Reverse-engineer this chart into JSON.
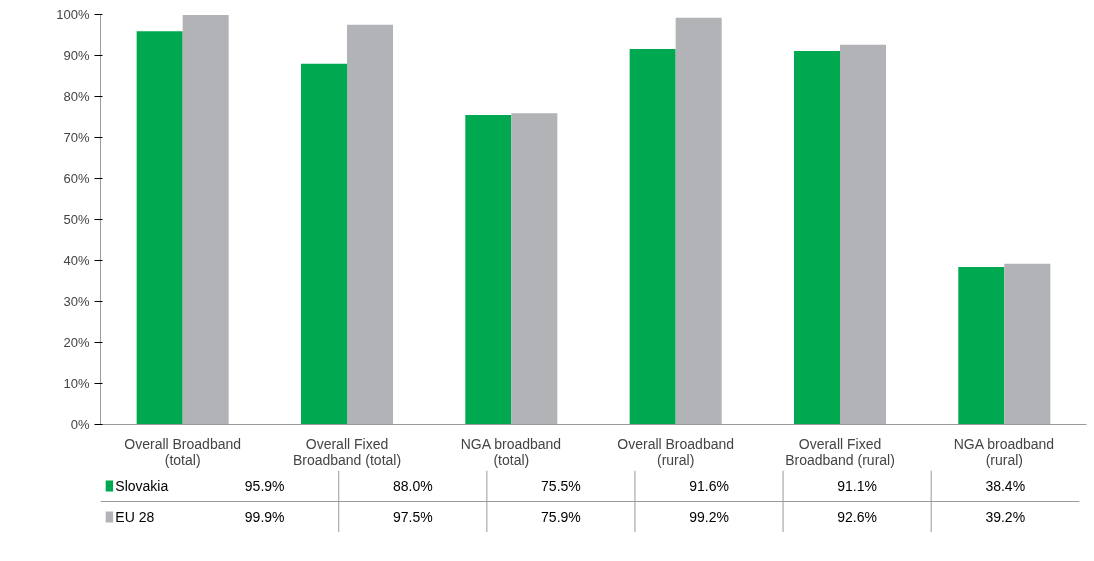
{
  "chart_data": {
    "type": "bar",
    "categories": [
      "Overall Broadband (total)",
      "Overall Fixed Broadband (total)",
      "NGA broadband (total)",
      "Overall Broadband (rural)",
      "Overall Fixed Broadband (rural)",
      "NGA broadband (rural)"
    ],
    "series": [
      {
        "name": "Slovakia",
        "color": "#00a84f",
        "values": [
          95.9,
          88.0,
          75.5,
          91.6,
          91.1,
          38.4
        ],
        "value_labels": [
          "95.9%",
          "88.0%",
          "75.5%",
          "91.6%",
          "91.1%",
          "38.4%"
        ]
      },
      {
        "name": "EU 28",
        "color": "#b1b3b6",
        "values": [
          99.9,
          97.5,
          75.9,
          99.2,
          92.6,
          39.2
        ],
        "value_labels": [
          "99.9%",
          "97.5%",
          "75.9%",
          "99.2%",
          "92.6%",
          "39.2%"
        ]
      }
    ],
    "ylim": [
      0,
      100
    ],
    "yticks": [
      {
        "value": 0,
        "label": "0%"
      },
      {
        "value": 10,
        "label": "10%"
      },
      {
        "value": 20,
        "label": "20%"
      },
      {
        "value": 30,
        "label": "30%"
      },
      {
        "value": 40,
        "label": "40%"
      },
      {
        "value": 50,
        "label": "50%"
      },
      {
        "value": 60,
        "label": "60%"
      },
      {
        "value": 70,
        "label": "70%"
      },
      {
        "value": 80,
        "label": "80%"
      },
      {
        "value": 90,
        "label": "90%"
      },
      {
        "value": 100,
        "label": "100%"
      }
    ],
    "grid": false,
    "legend": "bottom left"
  }
}
